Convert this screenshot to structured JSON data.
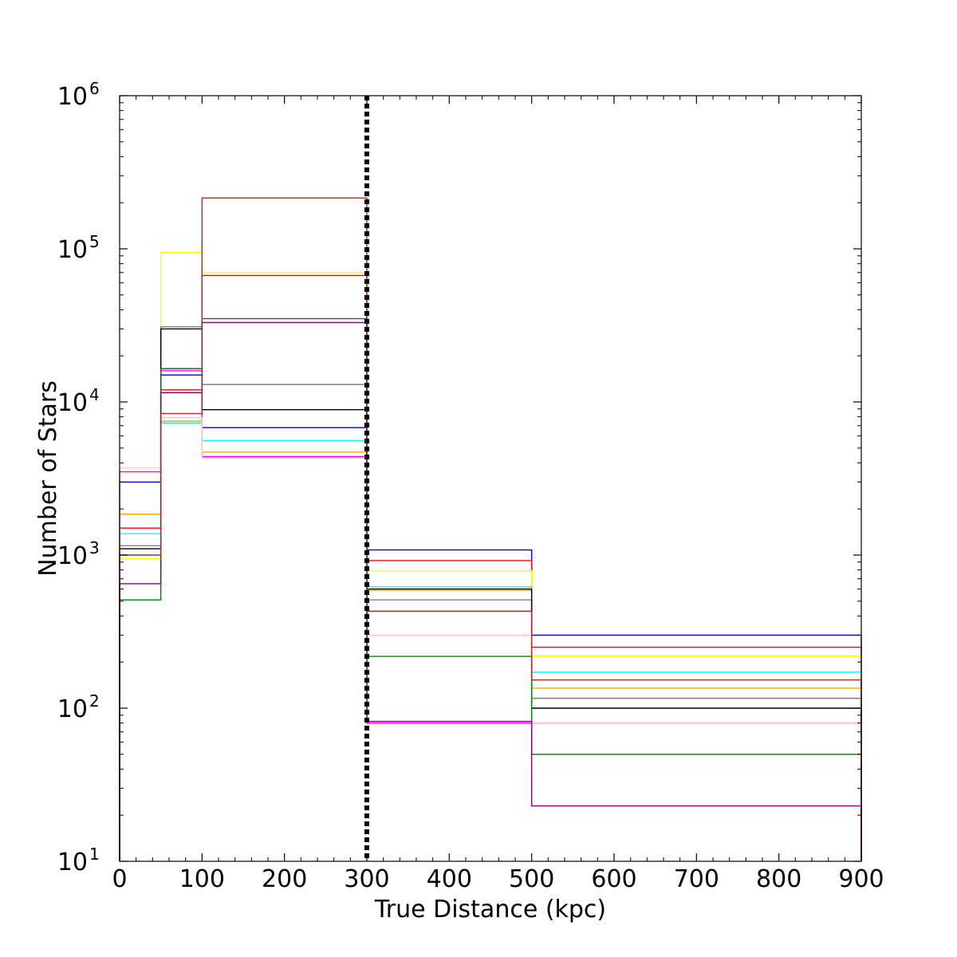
{
  "chart_data": {
    "type": "line",
    "title": "",
    "xlabel": "True Distance (kpc)",
    "ylabel": "Number of Stars",
    "xlim": [
      0,
      900
    ],
    "ylim": [
      10,
      1000000
    ],
    "yscale": "log",
    "grid": false,
    "x_ticks": [
      0,
      100,
      200,
      300,
      400,
      500,
      600,
      700,
      800,
      900
    ],
    "x_tick_labels": [
      "0",
      "100",
      "200",
      "300",
      "400",
      "500",
      "600",
      "700",
      "800",
      "900"
    ],
    "y_ticks": [
      10,
      100,
      1000,
      10000,
      100000,
      1000000
    ],
    "y_tick_labels": [
      {
        "base": "10",
        "exp": "1"
      },
      {
        "base": "10",
        "exp": "2"
      },
      {
        "base": "10",
        "exp": "3"
      },
      {
        "base": "10",
        "exp": "4"
      },
      {
        "base": "10",
        "exp": "5"
      },
      {
        "base": "10",
        "exp": "6"
      }
    ],
    "bin_edges": [
      0,
      50,
      100,
      300,
      500,
      900
    ],
    "series": [
      {
        "color": "#0000ff",
        "values": [
          3000,
          15000,
          6800,
          1080,
          300
        ]
      },
      {
        "color": "#ff0000",
        "values": [
          1500,
          12000,
          67000,
          920,
          250
        ]
      },
      {
        "color": "#ffff00",
        "values": [
          950,
          95000,
          70000,
          790,
          220
        ]
      },
      {
        "color": "#00ffff",
        "values": [
          1380,
          7300,
          5600,
          620,
          172
        ]
      },
      {
        "color": "#ff00ff",
        "values": [
          3500,
          16000,
          4400,
          80,
          80
        ]
      },
      {
        "color": "#ffa500",
        "values": [
          1850,
          7500,
          4700,
          590,
          135
        ]
      },
      {
        "color": "#808080",
        "values": [
          1150,
          31000,
          13000,
          510,
          116
        ]
      },
      {
        "color": "#000000",
        "values": [
          1100,
          30000,
          8900,
          600,
          100
        ]
      },
      {
        "color": "#ffc0cb",
        "values": [
          3700,
          7900,
          4300,
          300,
          80
        ]
      },
      {
        "color": "#008000",
        "values": [
          510,
          16500,
          35000,
          218,
          50
        ]
      },
      {
        "color": "#800080",
        "values": [
          650,
          11500,
          33000,
          82,
          23
        ]
      },
      {
        "color": "#a52a2a",
        "values": [
          1000,
          8400,
          215000,
          430,
          153
        ]
      }
    ],
    "vline": {
      "x": 300,
      "color": "#000000",
      "style": "dotted"
    }
  }
}
